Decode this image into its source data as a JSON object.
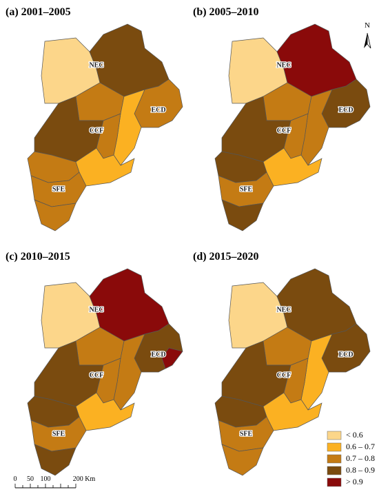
{
  "panels": [
    {
      "title": "(a) 2001–2005",
      "labels": [
        "NEC",
        "CCF",
        "ECD",
        "SFE"
      ]
    },
    {
      "title": "(b) 2005–2010",
      "labels": [
        "NEC",
        "CCF",
        "ECD",
        "SFE"
      ]
    },
    {
      "title": "(c) 2010–2015",
      "labels": [
        "NEC",
        "CCF",
        "ECD",
        "SFE"
      ]
    },
    {
      "title": "(d) 2015–2020",
      "labels": [
        "NEC",
        "CCF",
        "ECD",
        "SFE"
      ]
    }
  ],
  "legend": {
    "items": [
      {
        "label": "< 0.6",
        "color": "#fcd68a"
      },
      {
        "label": "0.6 – 0.7",
        "color": "#fbb122"
      },
      {
        "label": "0.7 – 0.8",
        "color": "#c47b14"
      },
      {
        "label": "0.8 – 0.9",
        "color": "#7a4b0f"
      },
      {
        "label": "> 0.9",
        "color": "#8a0a0a"
      }
    ]
  },
  "scale_bar": {
    "labels": [
      "0",
      "50",
      "100",
      "200 Km"
    ]
  },
  "north_arrow": "N"
}
